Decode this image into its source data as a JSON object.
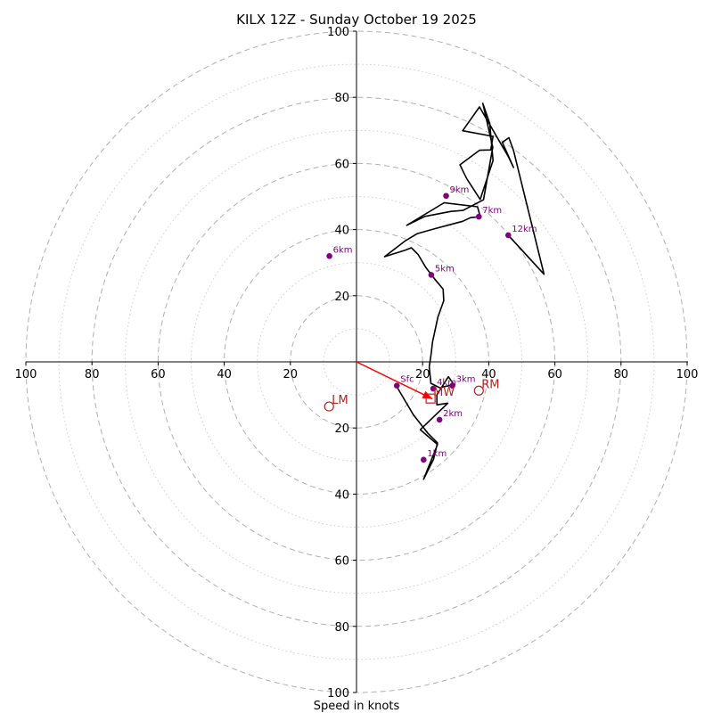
{
  "chart_data": {
    "type": "hodograph",
    "title": "KILX 12Z - Sunday October 19 2025",
    "xlabel": "Speed in knots",
    "range": [
      -100,
      100
    ],
    "rings": {
      "dashed": [
        20,
        40,
        60,
        80,
        100
      ],
      "dotted": [
        10,
        30,
        50,
        70,
        90
      ]
    },
    "x_ticks": [
      {
        "value": -100,
        "label": "100"
      },
      {
        "value": -80,
        "label": "80"
      },
      {
        "value": -60,
        "label": "60"
      },
      {
        "value": -40,
        "label": "40"
      },
      {
        "value": -20,
        "label": "20"
      },
      {
        "value": 20,
        "label": "20"
      },
      {
        "value": 40,
        "label": "40"
      },
      {
        "value": 60,
        "label": "60"
      },
      {
        "value": 80,
        "label": "80"
      },
      {
        "value": 100,
        "label": "100"
      }
    ],
    "y_ticks": [
      {
        "value": 100,
        "label": "100"
      },
      {
        "value": 80,
        "label": "80"
      },
      {
        "value": 60,
        "label": "60"
      },
      {
        "value": 40,
        "label": "40"
      },
      {
        "value": 20,
        "label": "20"
      },
      {
        "value": -20,
        "label": "20"
      },
      {
        "value": -40,
        "label": "40"
      },
      {
        "value": -60,
        "label": "60"
      },
      {
        "value": -80,
        "label": "80"
      },
      {
        "value": -100,
        "label": "100"
      }
    ],
    "trace": {
      "color": "#000000",
      "u": [
        11.9,
        17.2,
        21.5,
        24.5,
        23.3,
        20.3,
        24.5,
        19.3,
        27.6,
        24.3,
        24.3,
        24.8,
        24.8,
        27.8,
        29.5,
        26.5,
        25.3,
        22.5,
        22.0,
        22.6,
        23.0,
        24.6,
        26.4,
        26.2,
        23.7,
        21.0,
        18.6,
        16.6,
        14.8,
        8.5,
        14.6,
        18.4,
        23.8,
        32.1,
        34.5,
        37.4,
        36.6,
        26.5,
        15.2,
        20.7,
        28.6,
        32.2,
        38.4,
        41.2,
        38.2,
        40.3,
        41.3,
        37.4,
        33.4,
        32.3,
        31.3,
        37.2,
        40.6,
        41.3,
        32.1,
        37.2,
        45.9,
        47.5,
        44.1,
        46.1,
        47.5,
        56.7,
        45.9
      ],
      "v": [
        -7.0,
        -16.0,
        -21.5,
        -24.5,
        -29.5,
        -35.5,
        -25.0,
        -20.5,
        -12.5,
        -13.0,
        -10.0,
        -9.0,
        -9.2,
        -4.5,
        -6.9,
        -7.5,
        -7.9,
        -6.5,
        -1.5,
        2.5,
        6.0,
        13.5,
        18.5,
        22.0,
        25.0,
        28.5,
        32.5,
        34.5,
        33.8,
        31.8,
        36.5,
        38.8,
        40.3,
        42.5,
        43.6,
        43.9,
        46.9,
        48.1,
        41.3,
        44.0,
        45.5,
        45.8,
        49.0,
        64.9,
        78.2,
        72.1,
        60.9,
        49.1,
        55.3,
        57.5,
        59.6,
        64.0,
        64.1,
        68.2,
        69.9,
        77.1,
        62.1,
        58.8,
        66.4,
        67.8,
        63.9,
        26.5,
        38.3
      ]
    },
    "height_markers": [
      {
        "label": "Sfc",
        "u": 12.2,
        "v": -7.2
      },
      {
        "label": "1km",
        "u": 20.3,
        "v": -29.6
      },
      {
        "label": "2km",
        "u": 25.1,
        "v": -17.5
      },
      {
        "label": "3km",
        "u": 29.0,
        "v": -7.2
      },
      {
        "label": "4km",
        "u": 23.2,
        "v": -8.1
      },
      {
        "label": "5km",
        "u": 22.6,
        "v": 26.3
      },
      {
        "label": "6km",
        "u": -8.2,
        "v": 32.0
      },
      {
        "label": "7km",
        "u": 37.0,
        "v": 43.9
      },
      {
        "label": "9km",
        "u": 27.1,
        "v": 50.2
      },
      {
        "label": "12km",
        "u": 45.9,
        "v": 38.3
      }
    ],
    "storm_motions": [
      {
        "label": "RM",
        "u": 37.0,
        "v": -8.7,
        "shape": "circle"
      },
      {
        "label": "LM",
        "u": -8.3,
        "v": -13.5,
        "shape": "circle"
      },
      {
        "label": "MW",
        "u": 22.4,
        "v": -11.1,
        "shape": "square"
      }
    ],
    "shear_vector": {
      "from_u": 0,
      "from_v": 0,
      "to_u": 23.0,
      "to_v": -11.2
    },
    "colors": {
      "trace": "#000000",
      "marker": "#800080",
      "storm_motion": "#b22222",
      "shear_vector": "#ff0000",
      "rings": "#b0b0b0"
    },
    "grid": true
  }
}
